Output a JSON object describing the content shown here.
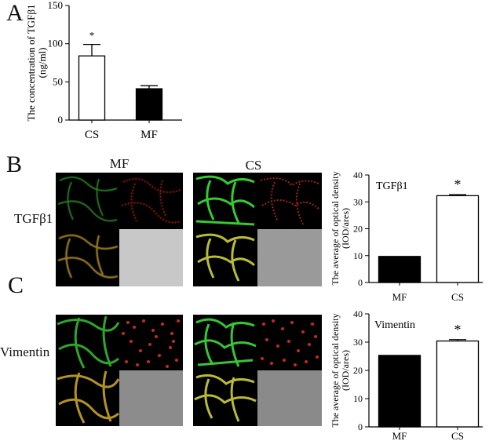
{
  "panels": {
    "a": "A",
    "b": "B",
    "c": "C"
  },
  "columns": {
    "mf": "MF",
    "cs": "CS"
  },
  "rows": {
    "tgf": "TGFβ1",
    "vim": "Vimentin"
  },
  "colors": {
    "bar_dark": "#000000",
    "bar_light": "#ffffff",
    "green": "#3fd83a",
    "red": "#e32a1e",
    "merge": "#d7c32a",
    "bright": "#c9c9c9"
  },
  "chart_data": [
    {
      "id": "A",
      "type": "bar",
      "ylabel": [
        "The concentration of TGFβ1",
        "(ng/ml)"
      ],
      "ylim": [
        0,
        150
      ],
      "yticks": [
        0,
        50,
        100,
        150
      ],
      "categories": [
        "CS",
        "MF"
      ],
      "values": [
        84,
        41
      ],
      "errors": [
        15,
        4
      ],
      "fills": [
        "#ffffff",
        "#000000"
      ],
      "annotations": [
        "*",
        ""
      ]
    },
    {
      "id": "B",
      "type": "bar",
      "ylabel": [
        "The average of optical density",
        "(IOD/ares)"
      ],
      "inset_label": "TGFβ1",
      "ylim": [
        0,
        40
      ],
      "yticks": [
        0,
        10,
        20,
        30,
        40
      ],
      "categories": [
        "MF",
        "CS"
      ],
      "values": [
        9.7,
        32.3
      ],
      "errors": [
        0,
        0.4
      ],
      "fills": [
        "#000000",
        "#ffffff"
      ],
      "annotations": [
        "",
        "*"
      ]
    },
    {
      "id": "C",
      "type": "bar",
      "ylabel": [
        "The average of optical density",
        "(IOD/ares)"
      ],
      "inset_label": "Vimentin",
      "ylim": [
        0,
        40
      ],
      "yticks": [
        0,
        10,
        20,
        30,
        40
      ],
      "categories": [
        "MF",
        "CS"
      ],
      "values": [
        25.3,
        30.4
      ],
      "errors": [
        0,
        0.5
      ],
      "fills": [
        "#000000",
        "#ffffff"
      ],
      "annotations": [
        "",
        "*"
      ]
    }
  ]
}
